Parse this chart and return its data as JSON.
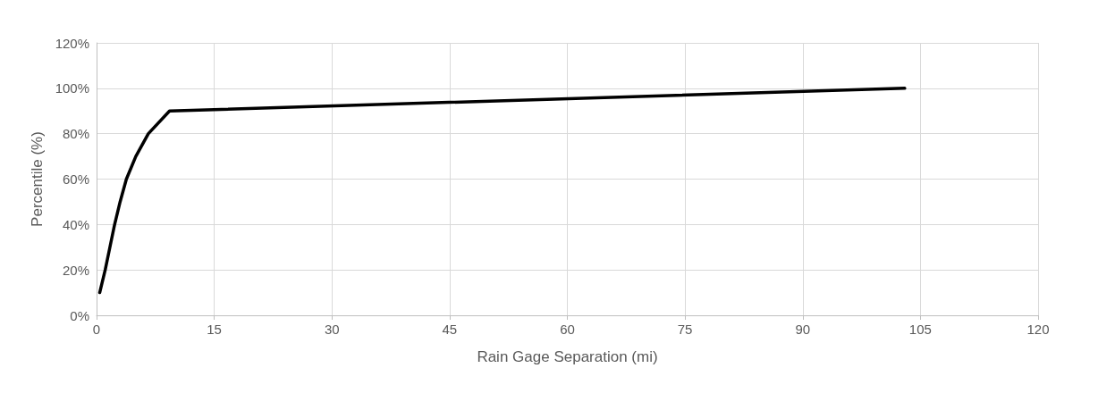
{
  "chart_data": {
    "type": "line",
    "xlabel": "Rain Gage Separation (mi)",
    "ylabel": "Percentile (%)",
    "series": [
      {
        "color": "#000000",
        "x": [
          0.4,
          1.1,
          1.7,
          2.3,
          3.0,
          3.8,
          5.0,
          6.6,
          9.3,
          103.0
        ],
        "values": [
          10,
          20,
          30,
          40,
          50,
          60,
          70,
          80,
          90,
          100
        ]
      }
    ],
    "xlim": [
      0,
      120
    ],
    "xticks": [
      0,
      15,
      30,
      45,
      60,
      75,
      90,
      105,
      120
    ],
    "ylim": [
      0,
      120
    ],
    "yticks": [
      {
        "value": 0,
        "label": "0%"
      },
      {
        "value": 20,
        "label": "20%"
      },
      {
        "value": 40,
        "label": "40%"
      },
      {
        "value": 60,
        "label": "60%"
      },
      {
        "value": 80,
        "label": "80%"
      },
      {
        "value": 100,
        "label": "100%"
      },
      {
        "value": 120,
        "label": "120%"
      }
    ],
    "grid": true,
    "marker": "none",
    "line_style": "solid"
  }
}
